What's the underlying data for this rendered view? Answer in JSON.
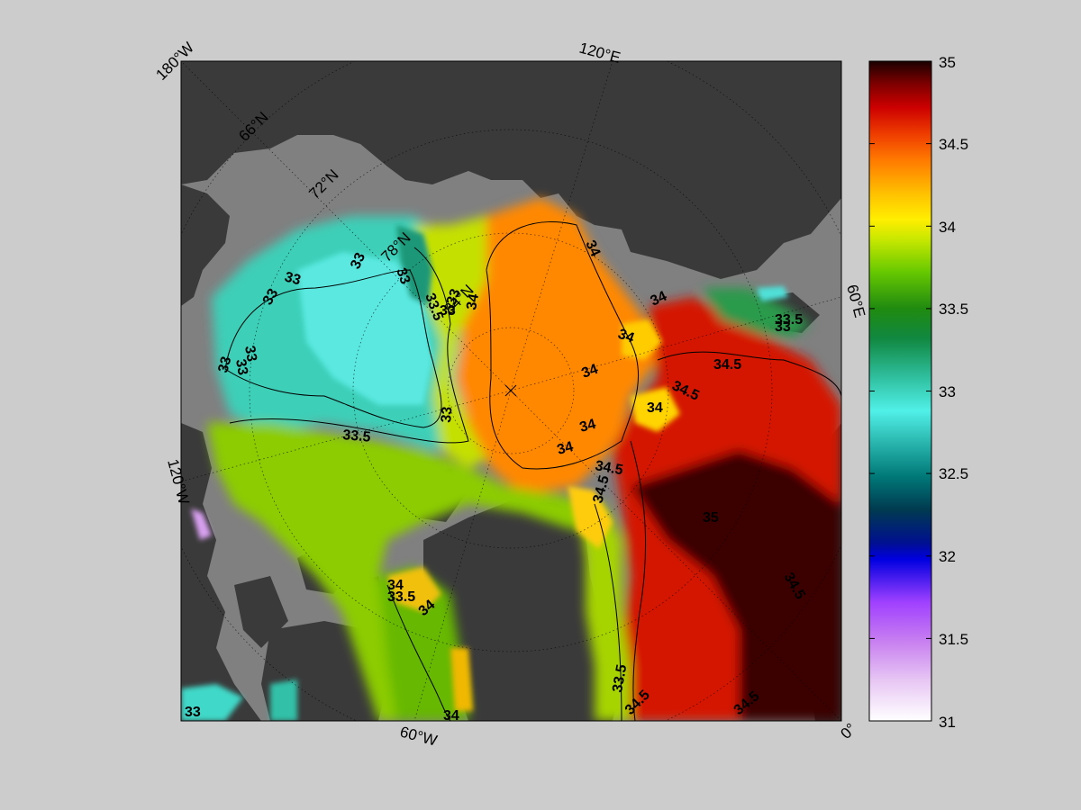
{
  "map": {
    "type": "polar-stereographic salinity map",
    "meridian_labels": [
      "180°W",
      "120°E",
      "60°E",
      "0°",
      "60°W",
      "120°W"
    ],
    "parallel_labels": [
      "66°N",
      "72°N",
      "78°N",
      "84°N"
    ],
    "contour_labels": [
      "33",
      "33",
      "33",
      "33",
      "33",
      "33",
      "33",
      "33",
      "33",
      "33.5",
      "33.5",
      "33.5",
      "33.5",
      "33.5",
      "34",
      "34",
      "34",
      "34",
      "34",
      "34",
      "34",
      "34",
      "34",
      "34",
      "34",
      "34.5",
      "34.5",
      "34.5",
      "34.5",
      "34.5",
      "34.5",
      "33",
      "33",
      "33",
      "35",
      "34.5"
    ],
    "colors": {
      "land": "#3a3a3a",
      "shelf": "#808080",
      "background": "#cccccc"
    }
  },
  "colorbar": {
    "ticks": [
      "35",
      "34.5",
      "34",
      "33.5",
      "33",
      "32.5",
      "32",
      "31.5",
      "31"
    ],
    "range": [
      31,
      35
    ],
    "colormap": [
      "#ffffff",
      "#e4b8f2",
      "#c060f0",
      "#8000ff",
      "#0000d8",
      "#003060",
      "#008888",
      "#30cccc",
      "#50f0e0",
      "#20aa70",
      "#1a8a20",
      "#66cc00",
      "#ccee00",
      "#ffee00",
      "#ffb000",
      "#ff7000",
      "#ee3000",
      "#cc0000",
      "#880000",
      "#300000",
      "#100000"
    ]
  }
}
